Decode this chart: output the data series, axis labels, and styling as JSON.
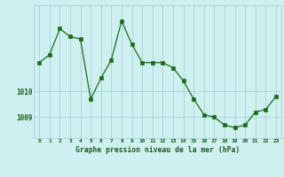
{
  "x": [
    0,
    1,
    2,
    3,
    4,
    5,
    6,
    7,
    8,
    9,
    10,
    11,
    12,
    13,
    14,
    15,
    16,
    17,
    18,
    19,
    20,
    21,
    22,
    23
  ],
  "y": [
    1011.1,
    1011.4,
    1012.4,
    1012.1,
    1012.0,
    1009.7,
    1010.5,
    1011.2,
    1012.7,
    1011.8,
    1011.1,
    1011.1,
    1011.1,
    1010.9,
    1010.4,
    1009.7,
    1009.1,
    1009.0,
    1008.7,
    1008.6,
    1008.7,
    1009.2,
    1009.3,
    1009.8
  ],
  "line_color": "#1a6e1a",
  "marker": "s",
  "marker_size": 2.2,
  "bg_color": "#cff0f0",
  "plot_bg_color": "#cff0f0",
  "grid_color": "#9ecece",
  "xlabel": "Graphe pression niveau de la mer (hPa)",
  "xlabel_color": "#1a5a1a",
  "ytick_labels": [
    "1010",
    "1009"
  ],
  "ytick_values": [
    1010.0,
    1009.0
  ],
  "ylim": [
    1008.2,
    1013.3
  ],
  "xlim": [
    -0.5,
    23.5
  ],
  "xtick_labels": [
    "0",
    "1",
    "2",
    "3",
    "4",
    "5",
    "6",
    "7",
    "8",
    "9",
    "10",
    "11",
    "12",
    "13",
    "14",
    "15",
    "16",
    "17",
    "18",
    "19",
    "20",
    "21",
    "22",
    "23"
  ],
  "figsize": [
    3.2,
    2.0
  ],
  "dpi": 100
}
